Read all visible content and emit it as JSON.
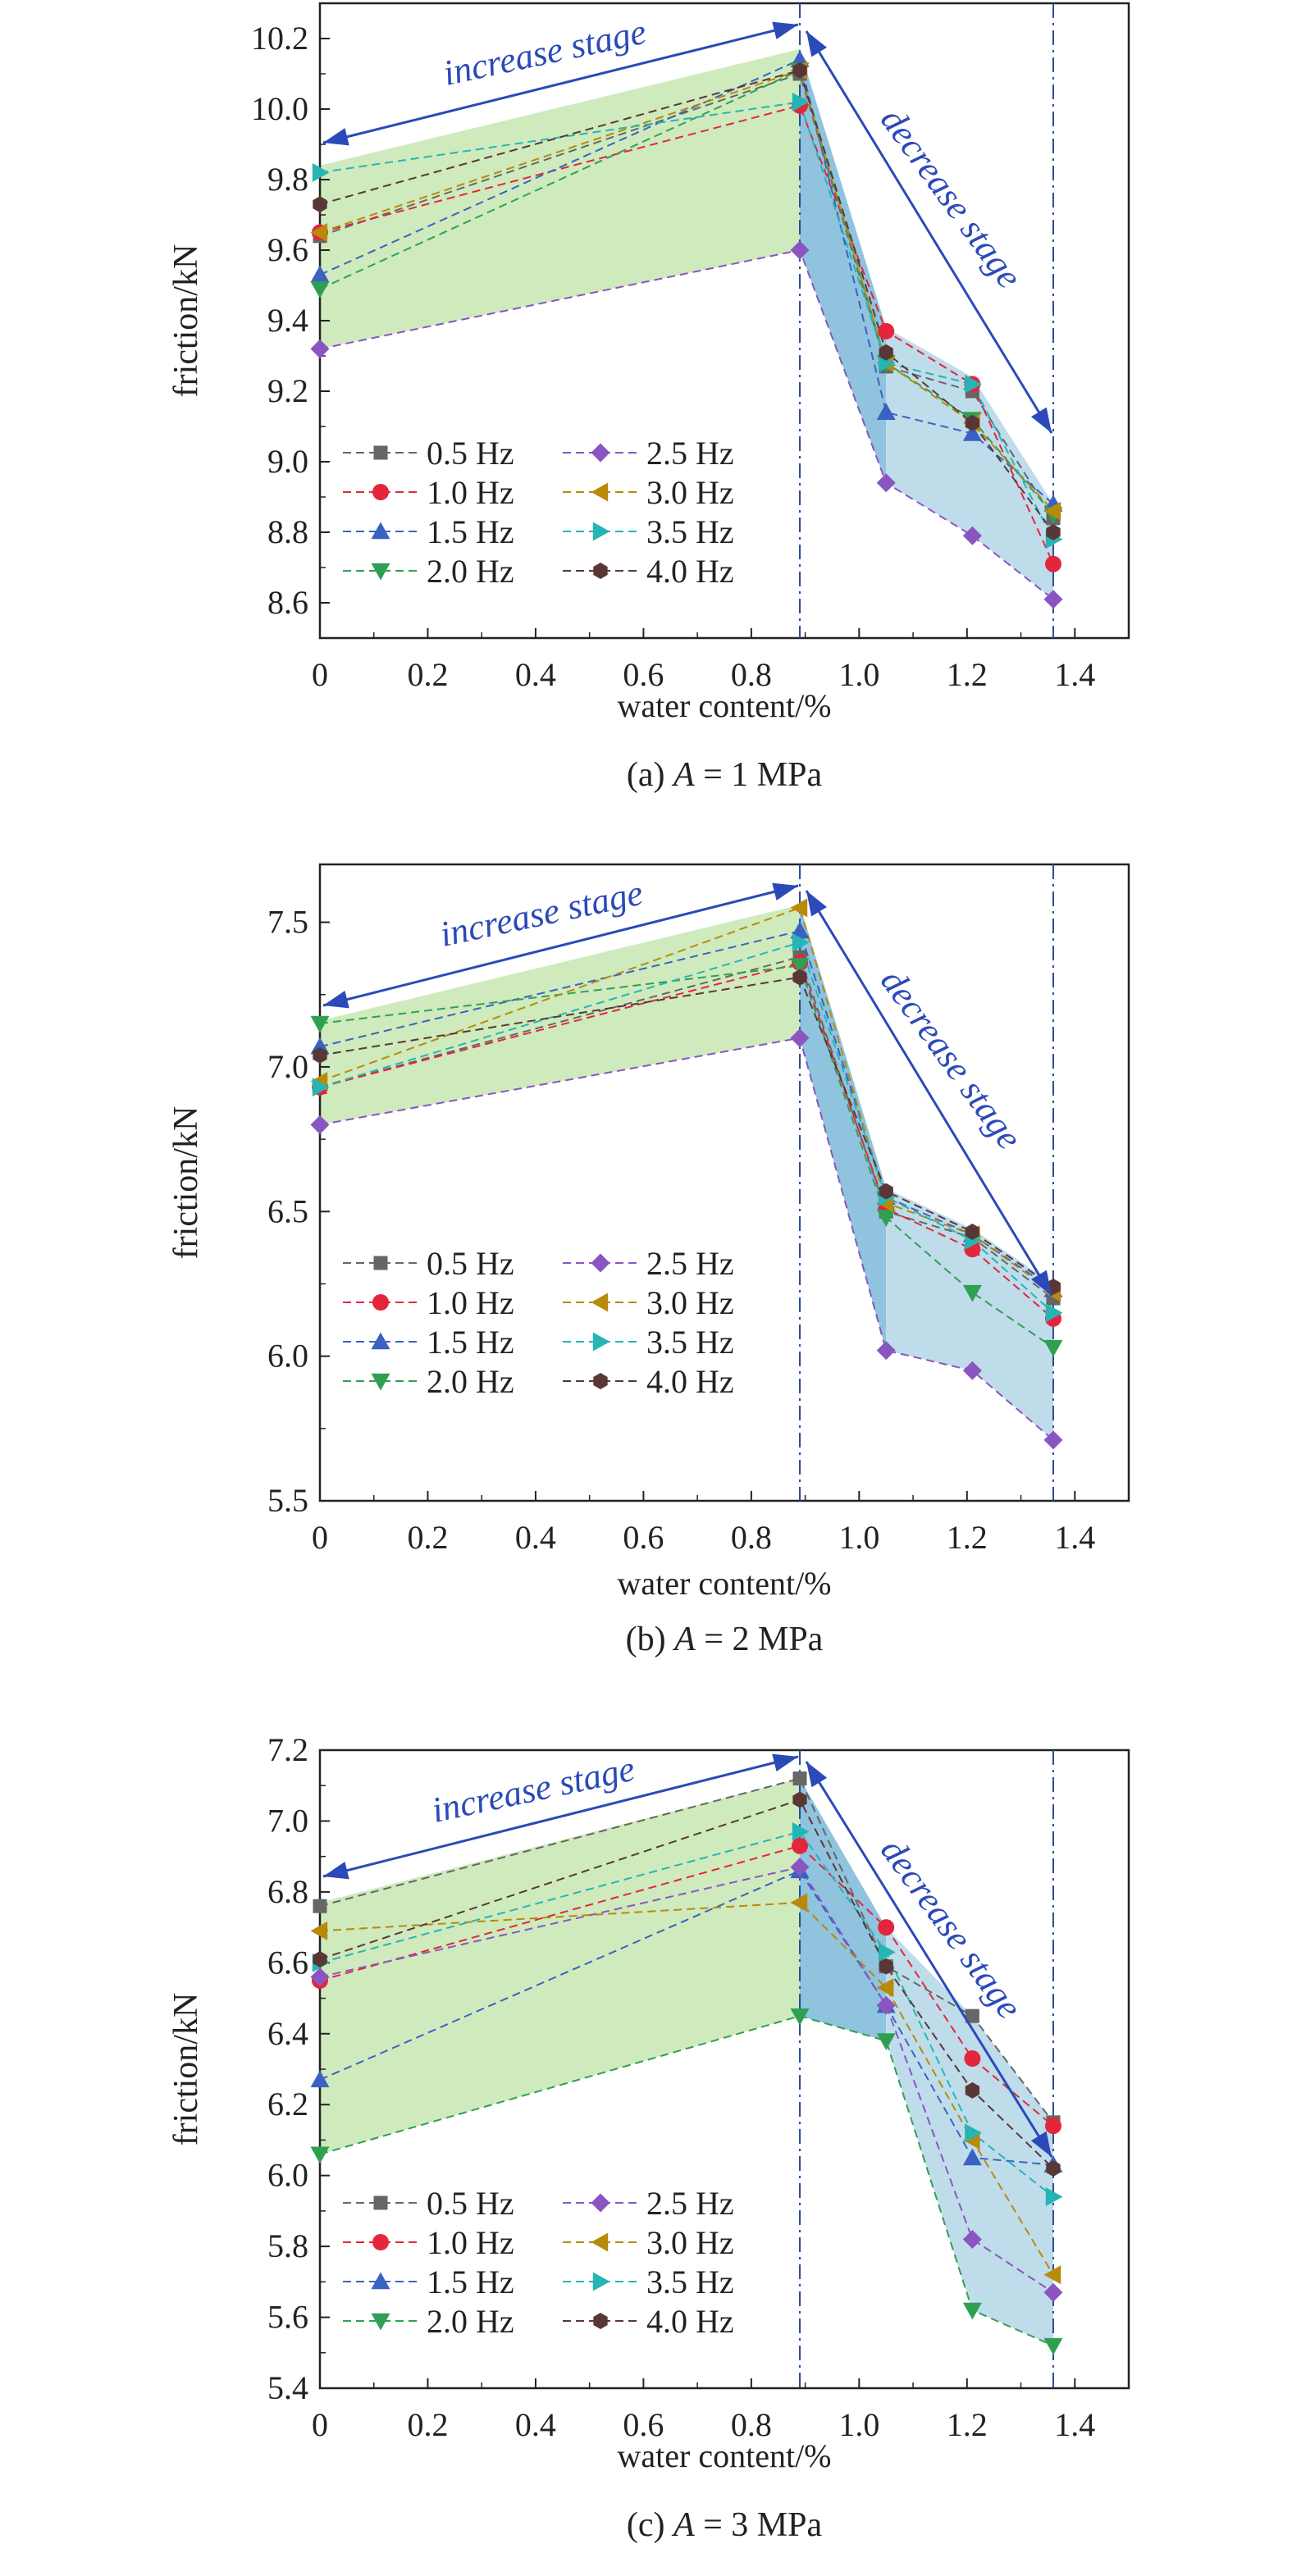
{
  "x_label": "water content/%",
  "y_label": "friction/kN",
  "increase_label": "increase stage",
  "decrease_label": "decrease stage",
  "colors": {
    "0.5 Hz": "#666666",
    "1.0 Hz": "#e3263b",
    "1.5 Hz": "#3a62c2",
    "2.0 Hz": "#2fa052",
    "2.5 Hz": "#8a55c1",
    "3.0 Hz": "#b88a0a",
    "3.5 Hz": "#25b5b5",
    "4.0 Hz": "#5a3737",
    "frame": "#222222",
    "guide": "#2b4a9c",
    "arrow": "#2b4ab8",
    "green_fill": "#cfeabd",
    "blue_fill_dark": "#8fc3de",
    "blue_fill_light": "#bfdceb"
  },
  "markers": {
    "0.5 Hz": "square",
    "1.0 Hz": "circle",
    "1.5 Hz": "triangle-up",
    "2.0 Hz": "triangle-down",
    "2.5 Hz": "diamond",
    "3.0 Hz": "triangle-left",
    "3.5 Hz": "triangle-right",
    "4.0 Hz": "hexagon"
  },
  "chart_data": [
    {
      "type": "line",
      "caption_prefix": "(a) ",
      "caption_var": "A",
      "caption_suffix": " = 1 MPa",
      "xlabel": "water content/%",
      "ylabel": "friction/kN",
      "x": [
        0,
        0.89,
        1.05,
        1.21,
        1.36
      ],
      "xlim": [
        0,
        1.5
      ],
      "ylim": [
        8.5,
        10.3
      ],
      "xticks": [
        0,
        0.2,
        0.4,
        0.6,
        0.8,
        1.0,
        1.2,
        1.4
      ],
      "xtick_labels": [
        "0",
        "0.2",
        "0.4",
        "0.6",
        "0.8",
        "1.0",
        "1.2",
        "1.4"
      ],
      "yticks": [
        8.6,
        8.8,
        9.0,
        9.2,
        9.4,
        9.6,
        9.8,
        10.0,
        10.2
      ],
      "ytick_labels": [
        "8.6",
        "8.8",
        "9.0",
        "9.2",
        "9.4",
        "9.6",
        "9.8",
        "10.0",
        "10.2"
      ],
      "vlines": [
        0.89,
        1.36
      ],
      "series": [
        {
          "name": "0.5 Hz",
          "values": [
            9.64,
            10.1,
            9.27,
            9.2,
            8.84
          ]
        },
        {
          "name": "1.0 Hz",
          "values": [
            9.65,
            10.01,
            9.37,
            9.22,
            8.71
          ]
        },
        {
          "name": "1.5 Hz",
          "values": [
            9.53,
            10.14,
            9.14,
            9.08,
            8.88
          ]
        },
        {
          "name": "2.0 Hz",
          "values": [
            9.49,
            10.11,
            9.28,
            9.12,
            8.85
          ]
        },
        {
          "name": "2.5 Hz",
          "values": [
            9.32,
            9.6,
            8.94,
            8.79,
            8.61
          ]
        },
        {
          "name": "3.0 Hz",
          "values": [
            9.65,
            10.11,
            9.28,
            9.11,
            8.86
          ]
        },
        {
          "name": "3.5 Hz",
          "values": [
            9.82,
            10.02,
            9.28,
            9.22,
            8.78
          ]
        },
        {
          "name": "4.0 Hz",
          "values": [
            9.73,
            10.11,
            9.31,
            9.11,
            8.8
          ]
        }
      ],
      "green_band": {
        "upper": [
          9.84,
          10.17
        ],
        "lower": [
          9.32,
          9.6
        ]
      },
      "blue_band": {
        "upper": [
          10.17,
          9.38,
          9.24,
          8.88
        ],
        "lower": [
          9.6,
          8.94,
          8.79,
          8.61
        ]
      },
      "legend": "lower-left"
    },
    {
      "type": "line",
      "caption_prefix": "(b) ",
      "caption_var": "A",
      "caption_suffix": " = 2 MPa",
      "xlabel": "water content/%",
      "ylabel": "friction/kN",
      "x": [
        0,
        0.89,
        1.05,
        1.21,
        1.36
      ],
      "xlim": [
        0,
        1.5
      ],
      "ylim": [
        5.5,
        7.7
      ],
      "xticks": [
        0,
        0.2,
        0.4,
        0.6,
        0.8,
        1.0,
        1.2,
        1.4
      ],
      "xtick_labels": [
        "0",
        "0.2",
        "0.4",
        "0.6",
        "0.8",
        "1.0",
        "1.2",
        "1.4"
      ],
      "yticks": [
        5.5,
        6.0,
        6.5,
        7.0,
        7.5
      ],
      "ytick_labels": [
        "5.5",
        "6.0",
        "6.5",
        "7.0",
        "7.5"
      ],
      "vlines": [
        0.89,
        1.36
      ],
      "series": [
        {
          "name": "0.5 Hz",
          "values": [
            6.93,
            7.38,
            6.5,
            6.41,
            6.2
          ]
        },
        {
          "name": "1.0 Hz",
          "values": [
            6.93,
            7.36,
            6.51,
            6.37,
            6.13
          ]
        },
        {
          "name": "1.5 Hz",
          "values": [
            7.07,
            7.47,
            6.55,
            6.42,
            6.23
          ]
        },
        {
          "name": "2.0 Hz",
          "values": [
            7.15,
            7.35,
            6.48,
            6.22,
            6.03
          ]
        },
        {
          "name": "2.5 Hz",
          "values": [
            6.8,
            7.1,
            6.02,
            5.95,
            5.71
          ]
        },
        {
          "name": "3.0 Hz",
          "values": [
            6.95,
            7.55,
            6.53,
            6.42,
            6.22
          ]
        },
        {
          "name": "3.5 Hz",
          "values": [
            6.93,
            7.43,
            6.55,
            6.4,
            6.15
          ]
        },
        {
          "name": "4.0 Hz",
          "values": [
            7.04,
            7.31,
            6.57,
            6.43,
            6.24
          ]
        }
      ],
      "green_band": {
        "upper": [
          7.16,
          7.56
        ],
        "lower": [
          6.8,
          7.1
        ]
      },
      "blue_band": {
        "upper": [
          7.56,
          6.58,
          6.44,
          6.25
        ],
        "lower": [
          7.1,
          6.02,
          5.95,
          5.71
        ]
      },
      "legend": "lower-left"
    },
    {
      "type": "line",
      "caption_prefix": "(c) ",
      "caption_var": "A",
      "caption_suffix": " = 3 MPa",
      "xlabel": "water content/%",
      "ylabel": "friction/kN",
      "x": [
        0,
        0.89,
        1.05,
        1.21,
        1.36
      ],
      "xlim": [
        0,
        1.5
      ],
      "ylim": [
        5.4,
        7.2
      ],
      "xticks": [
        0,
        0.2,
        0.4,
        0.6,
        0.8,
        1.0,
        1.2,
        1.4
      ],
      "xtick_labels": [
        "0",
        "0.2",
        "0.4",
        "0.6",
        "0.8",
        "1.0",
        "1.2",
        "1.4"
      ],
      "yticks": [
        5.4,
        5.6,
        5.8,
        6.0,
        6.2,
        6.4,
        6.6,
        6.8,
        7.0,
        7.2
      ],
      "ytick_labels": [
        "5.4",
        "5.6",
        "5.8",
        "6.0",
        "6.2",
        "6.4",
        "6.6",
        "6.8",
        "7.0",
        "7.2"
      ],
      "vlines": [
        0.89,
        1.36
      ],
      "series": [
        {
          "name": "0.5 Hz",
          "values": [
            6.76,
            7.12,
            6.59,
            6.45,
            6.15
          ]
        },
        {
          "name": "1.0 Hz",
          "values": [
            6.55,
            6.93,
            6.7,
            6.33,
            6.14
          ]
        },
        {
          "name": "1.5 Hz",
          "values": [
            6.27,
            6.86,
            6.48,
            6.05,
            6.03
          ]
        },
        {
          "name": "2.0 Hz",
          "values": [
            6.06,
            6.45,
            6.38,
            5.62,
            5.52
          ]
        },
        {
          "name": "2.5 Hz",
          "values": [
            6.56,
            6.87,
            6.48,
            5.82,
            5.67
          ]
        },
        {
          "name": "3.0 Hz",
          "values": [
            6.69,
            6.77,
            6.53,
            6.1,
            5.72
          ]
        },
        {
          "name": "3.5 Hz",
          "values": [
            6.6,
            6.97,
            6.63,
            6.12,
            5.94
          ]
        },
        {
          "name": "4.0 Hz",
          "values": [
            6.61,
            7.06,
            6.59,
            6.24,
            6.02
          ]
        }
      ],
      "green_band": {
        "upper": [
          6.77,
          7.12
        ],
        "lower": [
          6.06,
          6.45
        ]
      },
      "blue_band": {
        "upper": [
          7.12,
          6.7,
          6.45,
          6.15
        ],
        "lower": [
          6.45,
          6.38,
          5.62,
          5.52
        ]
      },
      "legend": "lower-left"
    }
  ]
}
